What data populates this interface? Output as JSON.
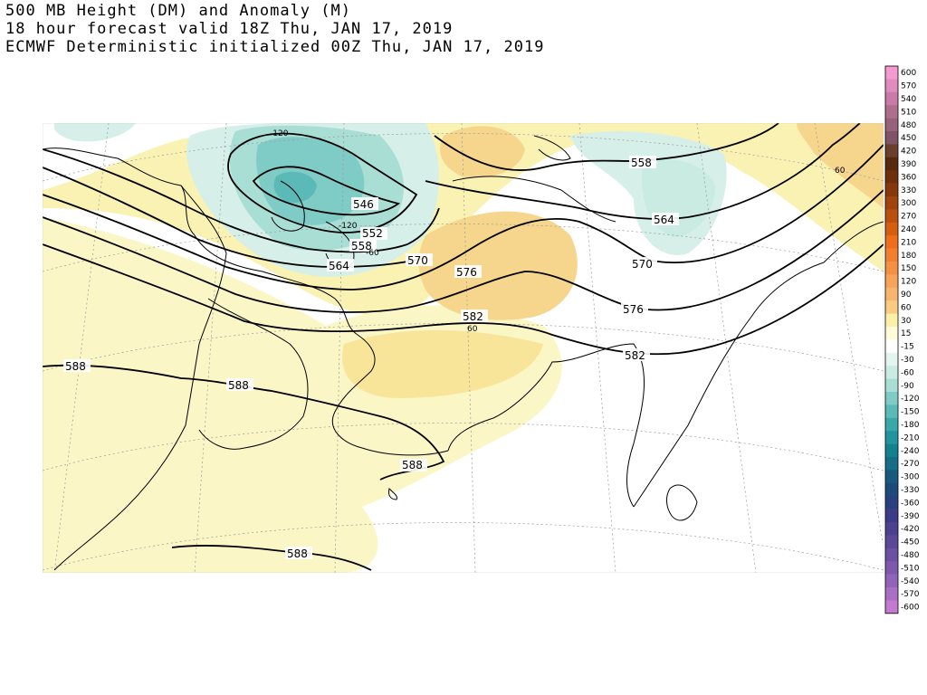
{
  "header": {
    "title_line1": "500 MB Height (DM) and Anomaly (M)",
    "title_line2": "18 hour forecast valid 18Z Thu, JAN 17, 2019",
    "title_line3": "ECMWF Deterministic initialized 00Z Thu, JAN 17, 2019"
  },
  "map": {
    "height_contour_labels": [
      "546",
      "552",
      "558",
      "564",
      "570",
      "576",
      "582",
      "588",
      "588",
      "588",
      "588",
      "558",
      "564",
      "570",
      "576",
      "582"
    ],
    "anomaly_labels": [
      "-120",
      "-120",
      "-60",
      "60",
      "60"
    ]
  },
  "colorbar": {
    "labels": [
      "600",
      "570",
      "540",
      "510",
      "480",
      "450",
      "420",
      "390",
      "360",
      "330",
      "300",
      "270",
      "240",
      "210",
      "180",
      "150",
      "120",
      "90",
      "60",
      "30",
      "15",
      "-15",
      "-30",
      "-60",
      "-90",
      "-120",
      "-150",
      "-180",
      "-210",
      "-240",
      "-270",
      "-300",
      "-330",
      "-360",
      "-390",
      "-420",
      "-450",
      "-480",
      "-510",
      "-540",
      "-570",
      "-600"
    ],
    "colors": [
      "#f49ad0",
      "#e08cbe",
      "#c97ba8",
      "#b06e8e",
      "#98627a",
      "#7f5466",
      "#6a3f2c",
      "#57280e",
      "#6e2f0b",
      "#86380b",
      "#a0430c",
      "#bb4f0d",
      "#d65e10",
      "#ee6e1c",
      "#f17f2e",
      "#f49043",
      "#f6a45a",
      "#f7b46e",
      "#f9ca81",
      "#faf0a8",
      "#fdfbd8",
      "#ffffff",
      "#e4f4ef",
      "#c9ebe2",
      "#a9ded5",
      "#7fcbc6",
      "#5bbab8",
      "#3aa8ab",
      "#20959f",
      "#13818f",
      "#156e86",
      "#175a7e",
      "#1c4a7b",
      "#2a3f80",
      "#3b3b88",
      "#4c4190",
      "#5b4898",
      "#6c50a2",
      "#7e59ad",
      "#9064b8",
      "#a86fc4",
      "#c37ad0"
    ]
  }
}
